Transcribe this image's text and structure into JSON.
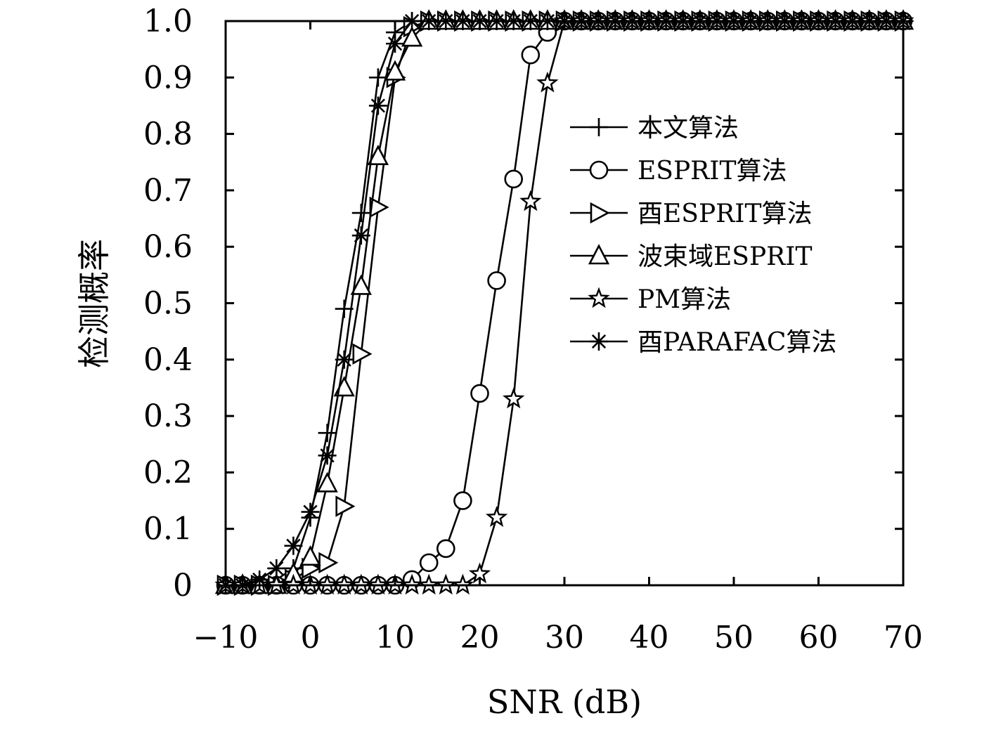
{
  "chart_data": {
    "type": "line",
    "title": "",
    "xlabel": "SNR (dB)",
    "ylabel": "检测概率",
    "xlim": [
      -10,
      70
    ],
    "ylim": [
      0,
      1.0
    ],
    "xticks": [
      -10,
      0,
      10,
      20,
      30,
      40,
      50,
      60,
      70
    ],
    "xtick_labels": [
      "−10",
      "0",
      "10",
      "20",
      "30",
      "40",
      "50",
      "60",
      "70"
    ],
    "yticks": [
      0,
      0.1,
      0.2,
      0.3,
      0.4,
      0.5,
      0.6,
      0.7,
      0.8,
      0.9,
      1.0
    ],
    "ytick_labels": [
      "0",
      "0.1",
      "0.2",
      "0.3",
      "0.4",
      "0.5",
      "0.6",
      "0.7",
      "0.8",
      "0.9",
      "1.0"
    ],
    "grid": false,
    "legend_position": "upper-right inside plot",
    "series": [
      {
        "name": "本文算法",
        "marker": "plus",
        "x": [
          -10,
          -8,
          -6,
          -4,
          -2,
          0,
          2,
          4,
          6,
          8,
          10,
          12,
          14,
          16,
          18,
          20,
          22,
          24,
          26,
          28,
          30,
          32,
          34,
          36,
          38,
          40,
          42,
          44,
          46,
          48,
          50,
          52,
          54,
          56,
          58,
          60,
          62,
          64,
          66,
          68,
          70
        ],
        "y": [
          0,
          0,
          0,
          0.01,
          0.03,
          0.12,
          0.27,
          0.49,
          0.66,
          0.9,
          0.98,
          1,
          1,
          1,
          1,
          1,
          1,
          1,
          1,
          1,
          1,
          1,
          1,
          1,
          1,
          1,
          1,
          1,
          1,
          1,
          1,
          1,
          1,
          1,
          1,
          1,
          1,
          1,
          1,
          1,
          1
        ]
      },
      {
        "name": "ESPRIT算法",
        "marker": "circle",
        "x": [
          -10,
          -8,
          -6,
          -4,
          -2,
          0,
          2,
          4,
          6,
          8,
          10,
          12,
          14,
          16,
          18,
          20,
          22,
          24,
          26,
          28,
          30,
          32,
          34,
          36,
          38,
          40,
          42,
          44,
          46,
          48,
          50,
          52,
          54,
          56,
          58,
          60,
          62,
          64,
          66,
          68,
          70
        ],
        "y": [
          0,
          0,
          0,
          0,
          0,
          0,
          0,
          0,
          0,
          0,
          0,
          0.01,
          0.04,
          0.065,
          0.15,
          0.34,
          0.54,
          0.72,
          0.94,
          0.98,
          1,
          1,
          1,
          1,
          1,
          1,
          1,
          1,
          1,
          1,
          1,
          1,
          1,
          1,
          1,
          1,
          1,
          1,
          1,
          1,
          1
        ]
      },
      {
        "name": "酉ESPRIT算法",
        "marker": "triangle-right",
        "x": [
          -10,
          -8,
          -6,
          -4,
          -2,
          0,
          2,
          4,
          6,
          8,
          10,
          12,
          14,
          16,
          18,
          20,
          22,
          24,
          26,
          28,
          30,
          32,
          34,
          36,
          38,
          40,
          42,
          44,
          46,
          48,
          50,
          52,
          54,
          56,
          58,
          60,
          62,
          64,
          66,
          68,
          70
        ],
        "y": [
          0,
          0,
          0,
          0,
          0.01,
          0.03,
          0.04,
          0.14,
          0.41,
          0.67,
          0.9,
          0.99,
          1,
          1,
          1,
          1,
          1,
          1,
          1,
          1,
          1,
          1,
          1,
          1,
          1,
          1,
          1,
          1,
          1,
          1,
          1,
          1,
          1,
          1,
          1,
          1,
          1,
          1,
          1,
          1,
          1
        ]
      },
      {
        "name": "波束域ESPRIT",
        "marker": "triangle-up",
        "x": [
          -10,
          -8,
          -6,
          -4,
          -2,
          0,
          2,
          4,
          6,
          8,
          10,
          12,
          14,
          16,
          18,
          20,
          22,
          24,
          26,
          28,
          30,
          32,
          34,
          36,
          38,
          40,
          42,
          44,
          46,
          48,
          50,
          52,
          54,
          56,
          58,
          60,
          62,
          64,
          66,
          68,
          70
        ],
        "y": [
          0,
          0,
          0,
          0,
          0.02,
          0.05,
          0.18,
          0.35,
          0.53,
          0.76,
          0.91,
          0.97,
          1,
          1,
          1,
          1,
          1,
          1,
          1,
          1,
          1,
          1,
          1,
          1,
          1,
          1,
          1,
          1,
          1,
          1,
          1,
          1,
          1,
          1,
          1,
          1,
          1,
          1,
          1,
          1,
          1
        ]
      },
      {
        "name": "PM算法",
        "marker": "star",
        "x": [
          -10,
          -8,
          -6,
          -4,
          -2,
          0,
          2,
          4,
          6,
          8,
          10,
          12,
          14,
          16,
          18,
          20,
          22,
          24,
          26,
          28,
          30,
          32,
          34,
          36,
          38,
          40,
          42,
          44,
          46,
          48,
          50,
          52,
          54,
          56,
          58,
          60,
          62,
          64,
          66,
          68,
          70
        ],
        "y": [
          0,
          0,
          0,
          0,
          0,
          0,
          0,
          0,
          0,
          0,
          0,
          0,
          0,
          0,
          0,
          0.02,
          0.12,
          0.33,
          0.68,
          0.89,
          1,
          1,
          1,
          1,
          1,
          1,
          1,
          1,
          1,
          1,
          1,
          1,
          1,
          1,
          1,
          1,
          1,
          1,
          1,
          1,
          1
        ]
      },
      {
        "name": "酉PARAFAC算法",
        "marker": "asterisk",
        "x": [
          -10,
          -8,
          -6,
          -4,
          -2,
          0,
          2,
          4,
          6,
          8,
          10,
          12,
          14,
          16,
          18,
          20,
          22,
          24,
          26,
          28,
          30,
          32,
          34,
          36,
          38,
          40,
          42,
          44,
          46,
          48,
          50,
          52,
          54,
          56,
          58,
          60,
          62,
          64,
          66,
          68,
          70
        ],
        "y": [
          0,
          0,
          0.01,
          0.03,
          0.07,
          0.13,
          0.23,
          0.4,
          0.62,
          0.85,
          0.96,
          1,
          1,
          1,
          1,
          1,
          1,
          1,
          1,
          1,
          1,
          1,
          1,
          1,
          1,
          1,
          1,
          1,
          1,
          1,
          1,
          1,
          1,
          1,
          1,
          1,
          1,
          1,
          1,
          1,
          1
        ]
      }
    ]
  }
}
